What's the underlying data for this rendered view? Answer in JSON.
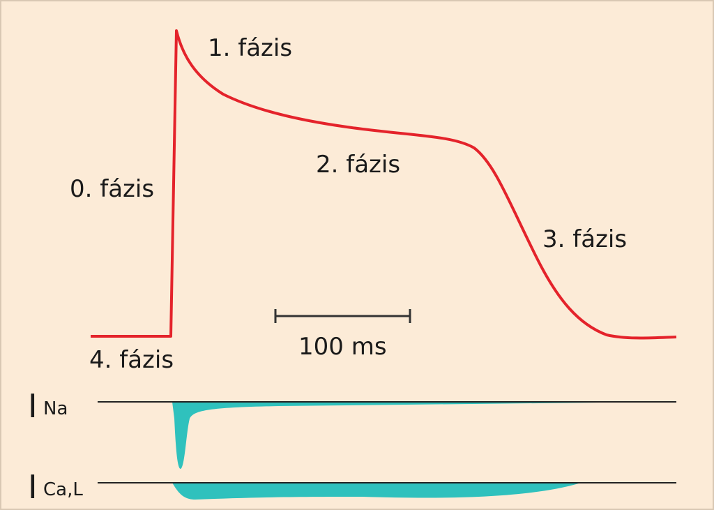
{
  "phases": [
    "0. fázis",
    "1. fázis",
    "2. fázis",
    "3. fázis",
    "4. fázis"
  ],
  "scale_bar": "100 ms",
  "currents": [
    {
      "symbol": "I",
      "subscript": "Na"
    },
    {
      "symbol": "I",
      "subscript": "Ca,L"
    }
  ]
}
